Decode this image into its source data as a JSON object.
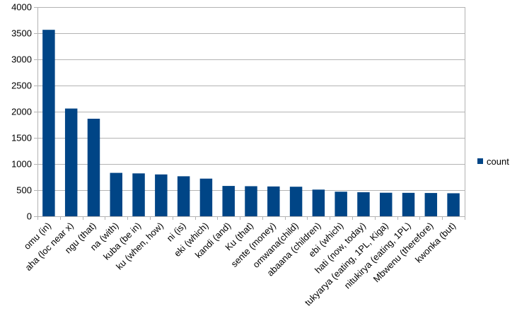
{
  "chart_data": {
    "type": "bar",
    "categories": [
      "omu (in)",
      "aha (loc near x)",
      "ngu (that)",
      "na (with)",
      "kuba (be in)",
      "ku (when, how)",
      "ni (is)",
      "eki (which)",
      "kandi (and)",
      "Ku (that)",
      "sente (money)",
      "omwana(child)",
      "abaana (children)",
      "ebi (which)",
      "hati (now, today)",
      "tukyarya (eating, 1PL, Kiga)",
      "nitukirya (eating, 1PL)",
      "Mbwenu (therefore)",
      "kwonka (but)"
    ],
    "series": [
      {
        "name": "count",
        "color": "#004586",
        "values": [
          3565,
          2060,
          1865,
          830,
          820,
          800,
          765,
          720,
          580,
          575,
          570,
          565,
          510,
          470,
          460,
          450,
          448,
          445,
          440
        ]
      }
    ],
    "ylim": [
      0,
      4000
    ],
    "yticks": [
      0,
      500,
      1000,
      1500,
      2000,
      2500,
      3000,
      3500,
      4000
    ],
    "grid": true,
    "legend_position": "right",
    "title": "",
    "xlabel": "",
    "ylabel": ""
  }
}
